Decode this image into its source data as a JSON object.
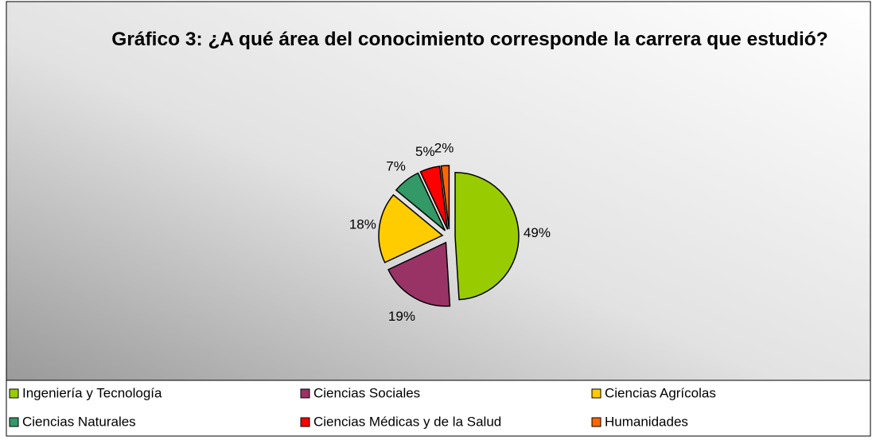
{
  "chart_data": {
    "type": "pie",
    "title": "Gráfico 3: ¿A qué área del conocimiento corresponde la carrera que estudió?",
    "categories": [
      "Ingeniería y Tecnología",
      "Ciencias Sociales",
      "Ciencias Agrícolas",
      "Ciencias Naturales",
      "Ciencias Médicas y de la Salud",
      "Humanidades"
    ],
    "values": [
      49,
      19,
      18,
      7,
      5,
      2
    ],
    "value_labels": [
      "49%",
      "19%",
      "18%",
      "7%",
      "5%",
      "2%"
    ],
    "colors": [
      "#99cc00",
      "#993366",
      "#ffcc00",
      "#339966",
      "#ff0000",
      "#ff6600"
    ],
    "legend": "bottom"
  }
}
